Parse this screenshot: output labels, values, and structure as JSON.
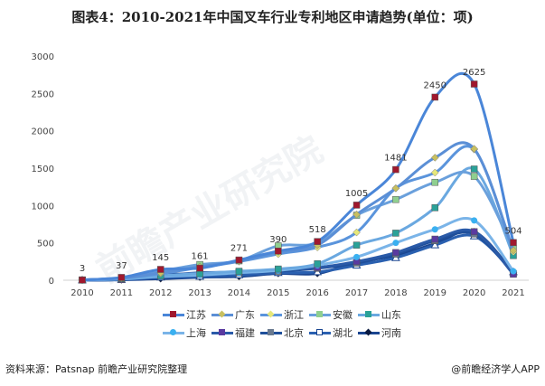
{
  "title": "图表4：2010-2021年中国叉车行业专利地区申请趋势(单位：项)",
  "source": "资料来源：Patsnap 前瞻产业研究院整理",
  "brand": "@前瞻经济学人APP",
  "watermark": "前瞻产业研究院",
  "chart_data": {
    "type": "line",
    "title": "图表4：2010-2021年中国叉车行业专利地区申请趋势(单位：项)",
    "x": [
      "2010",
      "2011",
      "2012",
      "2013",
      "2014",
      "2015",
      "2016",
      "2017",
      "2018",
      "2019",
      "2020",
      "2021"
    ],
    "ylim": [
      0,
      3000
    ],
    "yticks": [
      0,
      500,
      1000,
      1500,
      2000,
      2500,
      3000
    ],
    "grid": false,
    "legend": "bottom",
    "series": [
      {
        "name": "江苏",
        "values": [
          3,
          37,
          145,
          161,
          271,
          390,
          518,
          1005,
          1481,
          2450,
          2625,
          504
        ],
        "line": "#4a86d8",
        "marker": "#a0182e",
        "shape": "square",
        "labels": true
      },
      {
        "name": "广东",
        "values": [
          5,
          30,
          100,
          180,
          260,
          380,
          470,
          880,
          1230,
          1640,
          1759,
          400
        ],
        "line": "#5b8fd6",
        "marker": "#c8c060",
        "shape": "diamond"
      },
      {
        "name": "浙江",
        "values": [
          4,
          28,
          90,
          170,
          250,
          350,
          440,
          640,
          1230,
          1440,
          1750,
          380
        ],
        "line": "#5a94dc",
        "marker": "#e6e87a",
        "shape": "diamond"
      },
      {
        "name": "安徽",
        "values": [
          5,
          30,
          120,
          210,
          260,
          460,
          500,
          870,
          1080,
          1310,
          1390,
          420
        ],
        "line": "#6aa0dc",
        "marker": "#8fcf8f",
        "shape": "square"
      },
      {
        "name": "山东",
        "values": [
          3,
          20,
          60,
          90,
          120,
          150,
          220,
          470,
          630,
          970,
          1488,
          330
        ],
        "line": "#6aa8e0",
        "marker": "#2aa198",
        "shape": "square"
      },
      {
        "name": "上海",
        "values": [
          2,
          15,
          50,
          70,
          100,
          130,
          200,
          310,
          500,
          680,
          800,
          120
        ],
        "line": "#7ab4e8",
        "marker": "#3ab0f0",
        "shape": "circle"
      },
      {
        "name": "福建",
        "values": [
          2,
          10,
          60,
          100,
          110,
          140,
          170,
          250,
          370,
          550,
          650,
          80
        ],
        "line": "#2a5aa8",
        "marker": "#5a3aa0",
        "shape": "square"
      },
      {
        "name": "北京",
        "values": [
          3,
          12,
          80,
          80,
          100,
          120,
          160,
          230,
          350,
          530,
          620,
          90
        ],
        "line": "#1f4f9a",
        "marker": "#6a7a90",
        "shape": "square"
      },
      {
        "name": "湖北",
        "values": [
          1,
          8,
          40,
          50,
          70,
          100,
          110,
          200,
          300,
          470,
          590,
          110
        ],
        "line": "#2a60b0",
        "marker": "#ffffff",
        "shape": "triangle"
      },
      {
        "name": "河南",
        "values": [
          1,
          5,
          20,
          40,
          50,
          90,
          90,
          240,
          330,
          490,
          650,
          100
        ],
        "line": "#1a4590",
        "marker": "#0a1a40",
        "shape": "diamond"
      }
    ]
  }
}
